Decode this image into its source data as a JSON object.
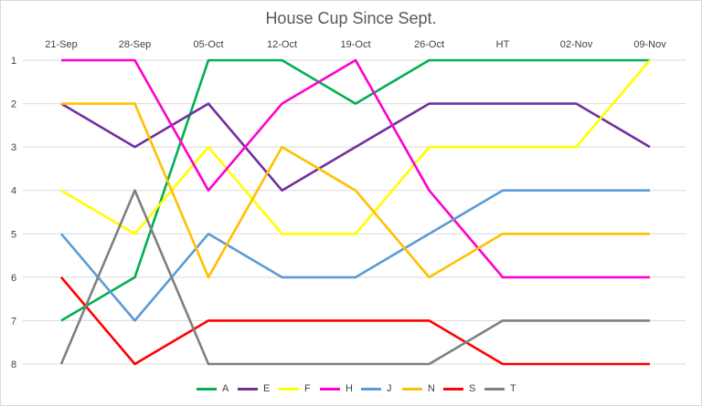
{
  "chart_data": {
    "type": "line",
    "title": "House Cup Since Sept.",
    "categories": [
      "21-Sep",
      "28-Sep",
      "05-Oct",
      "12-Oct",
      "19-Oct",
      "26-Oct",
      "HT",
      "02-Nov",
      "09-Nov"
    ],
    "y_ticks": [
      "1",
      "2",
      "3",
      "4",
      "5",
      "6",
      "7",
      "8"
    ],
    "ylim": [
      8,
      1
    ],
    "y_reversed": true,
    "grid": true,
    "legend_position": "bottom",
    "series": [
      {
        "name": "A",
        "color": "#00b050",
        "values": [
          7,
          6,
          1,
          1,
          2,
          1,
          1,
          1,
          1
        ]
      },
      {
        "name": "E",
        "color": "#7030a0",
        "values": [
          2,
          3,
          2,
          4,
          3,
          2,
          2,
          2,
          3
        ]
      },
      {
        "name": "F",
        "color": "#ffff00",
        "values": [
          4,
          5,
          3,
          5,
          5,
          3,
          3,
          3,
          1
        ]
      },
      {
        "name": "H",
        "color": "#ff00cc",
        "values": [
          1,
          1,
          4,
          2,
          1,
          4,
          6,
          6,
          6
        ]
      },
      {
        "name": "J",
        "color": "#5b9bd5",
        "values": [
          5,
          7,
          5,
          6,
          6,
          5,
          4,
          4,
          4
        ]
      },
      {
        "name": "N",
        "color": "#ffc000",
        "values": [
          2,
          2,
          6,
          3,
          4,
          6,
          5,
          5,
          5
        ]
      },
      {
        "name": "S",
        "color": "#ff0000",
        "values": [
          6,
          8,
          7,
          7,
          7,
          7,
          8,
          8,
          8
        ]
      },
      {
        "name": "T",
        "color": "#808080",
        "values": [
          8,
          4,
          8,
          8,
          8,
          8,
          7,
          7,
          7
        ]
      }
    ]
  }
}
